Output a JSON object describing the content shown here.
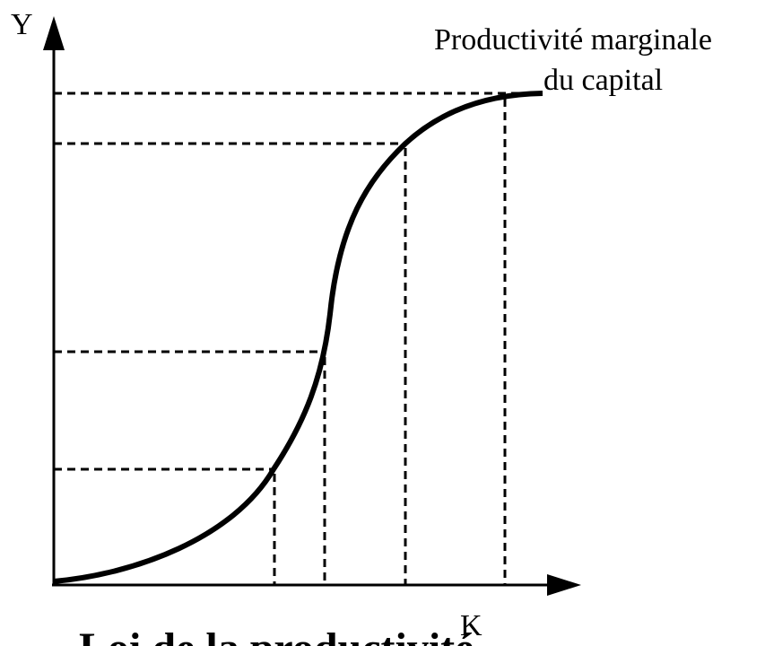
{
  "diagram": {
    "y_label": "Y",
    "x_label": "K",
    "annotation": [
      "Productivité marginale",
      "du capital"
    ],
    "title": "Loi de la productivité"
  }
}
